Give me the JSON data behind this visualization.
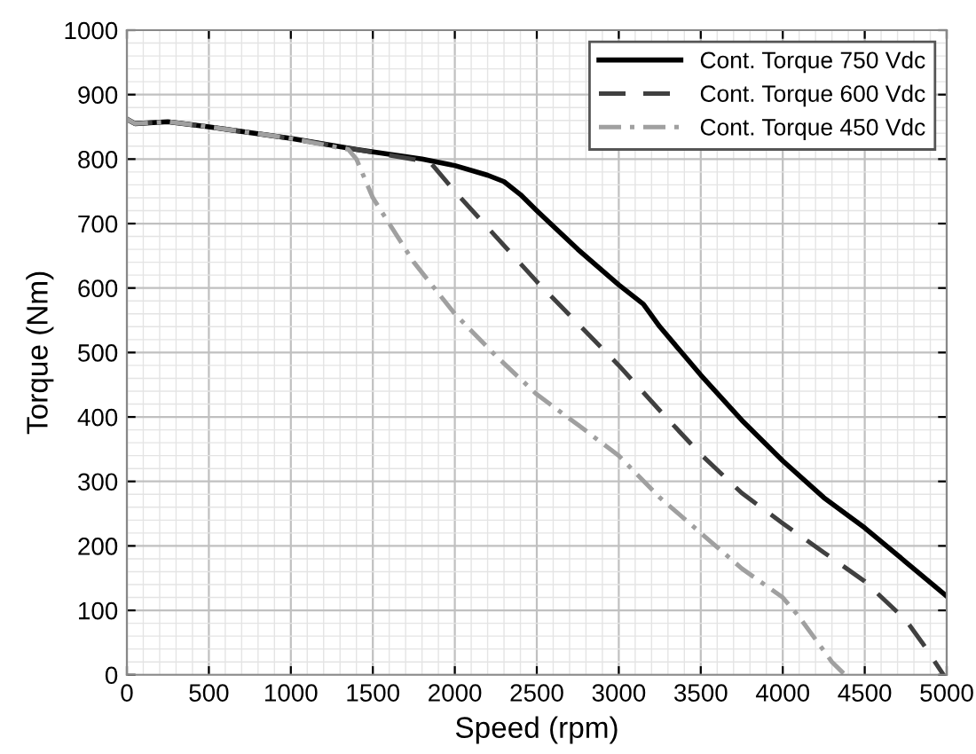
{
  "chart_data": {
    "type": "line",
    "xlabel": "Speed (rpm)",
    "ylabel": "Torque (Nm)",
    "xlim": [
      0,
      5000
    ],
    "ylim": [
      0,
      1000
    ],
    "xticks": [
      0,
      500,
      1000,
      1500,
      2000,
      2500,
      3000,
      3500,
      4000,
      4500,
      5000
    ],
    "yticks": [
      0,
      100,
      200,
      300,
      400,
      500,
      600,
      700,
      800,
      900,
      1000
    ],
    "grid": true,
    "legend": "top right",
    "series": [
      {
        "name": "Cont. Torque 750 Vdc",
        "color": "#000000",
        "line_style": "solid",
        "x": [
          0,
          50,
          250,
          500,
          1000,
          1400,
          1800,
          2000,
          2200,
          2300,
          2400,
          2500,
          2750,
          3000,
          3150,
          3250,
          3500,
          3750,
          4000,
          4250,
          4500,
          4750,
          5000
        ],
        "values": [
          862,
          855,
          858,
          850,
          832,
          815,
          800,
          790,
          775,
          765,
          745,
          720,
          660,
          605,
          575,
          540,
          465,
          395,
          332,
          275,
          228,
          175,
          122
        ]
      },
      {
        "name": "Cont. Torque 600 Vdc",
        "color": "#404040",
        "line_style": "dashed",
        "x": [
          0,
          50,
          250,
          500,
          1000,
          1400,
          1850,
          2000,
          2250,
          2500,
          2750,
          3000,
          3250,
          3500,
          3750,
          4000,
          4250,
          4500,
          4750,
          4850,
          4980
        ],
        "values": [
          862,
          855,
          858,
          850,
          832,
          815,
          795,
          750,
          680,
          610,
          545,
          480,
          410,
          342,
          282,
          235,
          190,
          145,
          85,
          50,
          0
        ]
      },
      {
        "name": "Cont. Torque 450 Vdc",
        "color": "#a0a0a0",
        "line_style": "dashdot",
        "x": [
          0,
          50,
          250,
          500,
          1000,
          1350,
          1400,
          1500,
          1750,
          2000,
          2250,
          2500,
          2750,
          3000,
          3250,
          3500,
          3750,
          4000,
          4100,
          4200,
          4300,
          4380
        ],
        "values": [
          862,
          855,
          858,
          850,
          832,
          815,
          800,
          740,
          640,
          560,
          495,
          435,
          388,
          340,
          275,
          220,
          165,
          120,
          90,
          55,
          20,
          0
        ]
      }
    ]
  }
}
